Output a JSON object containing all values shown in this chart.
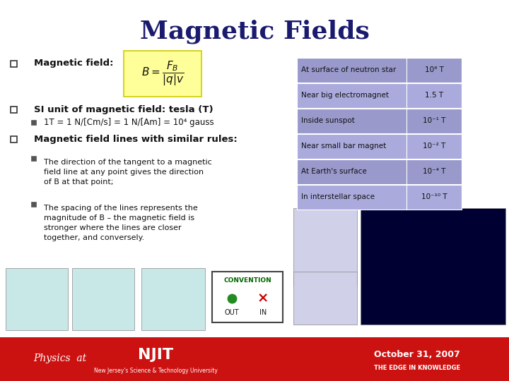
{
  "title": "Magnetic Fields",
  "title_color": "#1a1a6e",
  "bg_color": "#ffffff",
  "bullet1_header": "Magnetic field:",
  "bullet2_header": "SI unit of magnetic field: tesla (T)",
  "bullet2_sub": "1T = 1 N/[Cm/s] = 1 N/[Am] = 10⁴ gauss",
  "bullet3_header": "Magnetic field lines with similar rules:",
  "bullet3_sub1": "The direction of the tangent to a magnetic\nfield line at any point gives the direction\nof B at that point;",
  "bullet3_sub2": "The spacing of the lines represents the\nmagnitude of B – the magnetic field is\nstronger where the lines are closer\ntogether, and conversely.",
  "table_row_color": "#9999cc",
  "table_alt_color": "#aaaadd",
  "table_rows": [
    [
      "At surface of neutron star",
      "10⁸ T"
    ],
    [
      "Near big electromagnet",
      "1.5 T"
    ],
    [
      "Inside sunspot",
      "10⁻¹ T"
    ],
    [
      "Near small bar magnet",
      "10⁻² T"
    ],
    [
      "At Earth's surface",
      "10⁻⁴ T"
    ],
    [
      "In interstellar space",
      "10⁻¹⁰ T"
    ]
  ],
  "formula_bg": "#ffff99",
  "footer_bg": "#cc1111",
  "footer_text": "October 31, 2007",
  "conv_box_color": "#006600",
  "conv_x_color": "#cc0000"
}
